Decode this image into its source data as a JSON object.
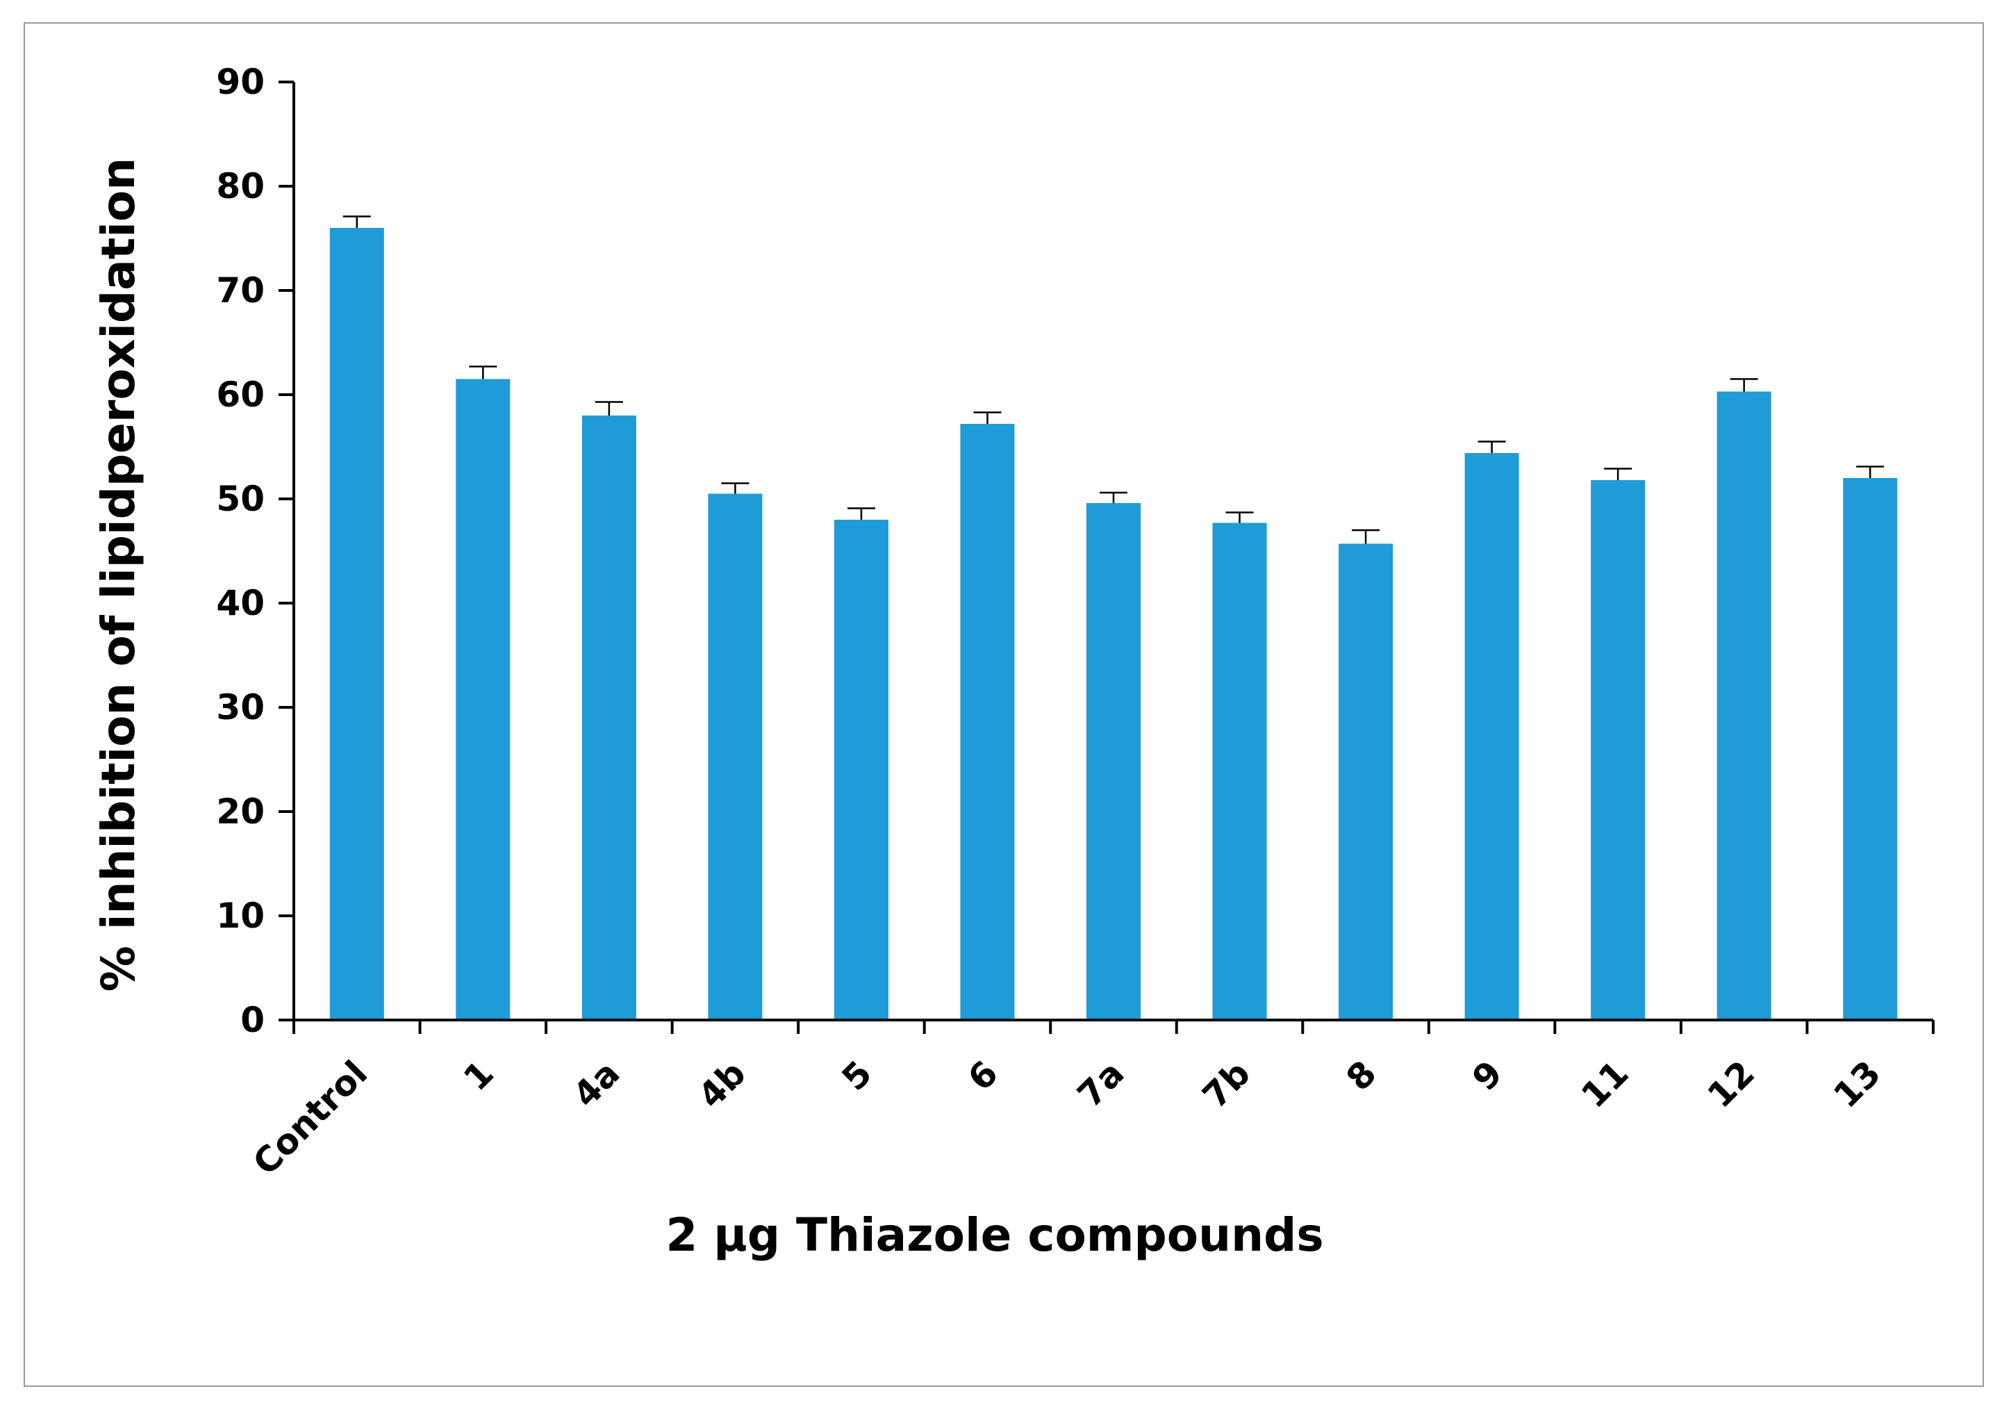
{
  "chart_data": {
    "type": "bar",
    "title": "",
    "xlabel": "2 μg Thiazole compounds",
    "ylabel": "% inhibition of lipidperoxidation",
    "ylim": [
      0,
      90
    ],
    "yticks": [
      0,
      10,
      20,
      30,
      40,
      50,
      60,
      70,
      80,
      90
    ],
    "categories": [
      "Control",
      "1",
      "4a",
      "4b",
      "5",
      "6",
      "7a",
      "7b",
      "8",
      "9",
      "11",
      "12",
      "13"
    ],
    "values": [
      76,
      61.5,
      58,
      50.5,
      48,
      57.2,
      49.6,
      47.7,
      45.7,
      54.4,
      51.8,
      60.3,
      52
    ],
    "errors": [
      1.1,
      1.2,
      1.3,
      1.0,
      1.1,
      1.1,
      1.0,
      1.0,
      1.3,
      1.1,
      1.1,
      1.2,
      1.1
    ],
    "bar_color": "#1f9bd7",
    "grid": false,
    "legend": "none"
  }
}
